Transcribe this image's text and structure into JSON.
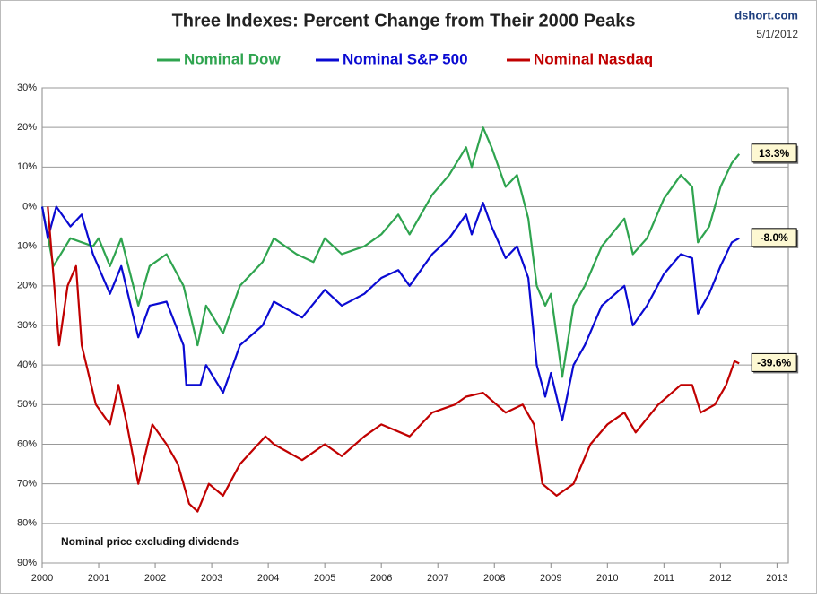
{
  "chart_data": {
    "type": "line",
    "title": "Three Indexes: Percent Change from Their 2000 Peaks",
    "source": "dshort.com",
    "date": "5/1/2012",
    "note": "Nominal price excluding dividends",
    "xlim": [
      2000,
      2013.2
    ],
    "xticks": [
      2000,
      2001,
      2002,
      2003,
      2004,
      2005,
      2006,
      2007,
      2008,
      2009,
      2010,
      2011,
      2012,
      2013
    ],
    "ylim": [
      -90,
      30
    ],
    "yticks": [
      {
        "value": 30,
        "label": "30%"
      },
      {
        "value": 20,
        "label": "20%"
      },
      {
        "value": 10,
        "label": "10%"
      },
      {
        "value": 0,
        "label": "0%"
      },
      {
        "value": -10,
        "label": "10%"
      },
      {
        "value": -20,
        "label": "20%"
      },
      {
        "value": -30,
        "label": "30%"
      },
      {
        "value": -40,
        "label": "40%"
      },
      {
        "value": -50,
        "label": "50%"
      },
      {
        "value": -60,
        "label": "60%"
      },
      {
        "value": -70,
        "label": "70%"
      },
      {
        "value": -80,
        "label": "80%"
      },
      {
        "value": -90,
        "label": "90%"
      }
    ],
    "grid": true,
    "series": [
      {
        "name": "Nominal Dow",
        "color": "#2fa44f",
        "end_label": "13.3%",
        "x": [
          2000,
          2000.2,
          2000.5,
          2000.9,
          2001.0,
          2001.2,
          2001.4,
          2001.7,
          2001.9,
          2002.2,
          2002.5,
          2002.75,
          2002.9,
          2003.2,
          2003.5,
          2003.9,
          2004.1,
          2004.5,
          2004.8,
          2005.0,
          2005.3,
          2005.7,
          2006.0,
          2006.3,
          2006.5,
          2006.9,
          2007.2,
          2007.5,
          2007.6,
          2007.8,
          2007.95,
          2008.2,
          2008.4,
          2008.6,
          2008.75,
          2008.9,
          2009.0,
          2009.2,
          2009.4,
          2009.6,
          2009.9,
          2010.3,
          2010.45,
          2010.7,
          2011.0,
          2011.3,
          2011.5,
          2011.6,
          2011.8,
          2012.0,
          2012.2,
          2012.33
        ],
        "values": [
          0,
          -15,
          -8,
          -10,
          -8,
          -15,
          -8,
          -25,
          -15,
          -12,
          -20,
          -35,
          -25,
          -32,
          -20,
          -14,
          -8,
          -12,
          -14,
          -8,
          -12,
          -10,
          -7,
          -2,
          -7,
          3,
          8,
          15,
          10,
          20,
          15,
          5,
          8,
          -3,
          -20,
          -25,
          -22,
          -43,
          -25,
          -20,
          -10,
          -3,
          -12,
          -8,
          2,
          8,
          5,
          -9,
          -5,
          5,
          11,
          13.3
        ]
      },
      {
        "name": "Nominal S&P 500",
        "color": "#0a0ad2",
        "end_label": "-8.0%",
        "x": [
          2000,
          2000.1,
          2000.25,
          2000.5,
          2000.7,
          2000.9,
          2001.2,
          2001.4,
          2001.7,
          2001.9,
          2002.2,
          2002.5,
          2002.55,
          2002.8,
          2002.9,
          2003.2,
          2003.5,
          2003.9,
          2004.1,
          2004.6,
          2005.0,
          2005.3,
          2005.7,
          2006.0,
          2006.3,
          2006.5,
          2006.9,
          2007.2,
          2007.5,
          2007.6,
          2007.8,
          2007.95,
          2008.2,
          2008.4,
          2008.6,
          2008.75,
          2008.9,
          2009.0,
          2009.2,
          2009.4,
          2009.6,
          2009.9,
          2010.3,
          2010.45,
          2010.7,
          2011.0,
          2011.3,
          2011.5,
          2011.6,
          2011.8,
          2012.0,
          2012.2,
          2012.33
        ],
        "values": [
          0,
          -8,
          0,
          -5,
          -2,
          -12,
          -22,
          -15,
          -33,
          -25,
          -24,
          -35,
          -45,
          -45,
          -40,
          -47,
          -35,
          -30,
          -24,
          -28,
          -21,
          -25,
          -22,
          -18,
          -16,
          -20,
          -12,
          -8,
          -2,
          -7,
          1,
          -5,
          -13,
          -10,
          -18,
          -40,
          -48,
          -42,
          -54,
          -40,
          -35,
          -25,
          -20,
          -30,
          -25,
          -17,
          -12,
          -13,
          -27,
          -22,
          -15,
          -9,
          -8.0
        ]
      },
      {
        "name": "Nominal Nasdaq",
        "color": "#c00000",
        "end_label": "-39.6%",
        "x": [
          2000.1,
          2000.3,
          2000.45,
          2000.6,
          2000.7,
          2000.95,
          2001.2,
          2001.35,
          2001.5,
          2001.7,
          2001.95,
          2002.2,
          2002.4,
          2002.6,
          2002.75,
          2002.95,
          2003.2,
          2003.5,
          2003.95,
          2004.1,
          2004.6,
          2005.0,
          2005.3,
          2005.7,
          2006.0,
          2006.5,
          2006.9,
          2007.3,
          2007.5,
          2007.8,
          2008.2,
          2008.5,
          2008.7,
          2008.85,
          2009.1,
          2009.4,
          2009.7,
          2010.0,
          2010.3,
          2010.5,
          2010.9,
          2011.3,
          2011.5,
          2011.65,
          2011.9,
          2012.1,
          2012.25,
          2012.33
        ],
        "values": [
          0,
          -35,
          -20,
          -15,
          -35,
          -50,
          -55,
          -45,
          -55,
          -70,
          -55,
          -60,
          -65,
          -75,
          -77,
          -70,
          -73,
          -65,
          -58,
          -60,
          -64,
          -60,
          -63,
          -58,
          -55,
          -58,
          -52,
          -50,
          -48,
          -47,
          -52,
          -50,
          -55,
          -70,
          -73,
          -70,
          -60,
          -55,
          -52,
          -57,
          -50,
          -45,
          -45,
          -52,
          -50,
          -45,
          -39,
          -39.6
        ]
      }
    ]
  }
}
